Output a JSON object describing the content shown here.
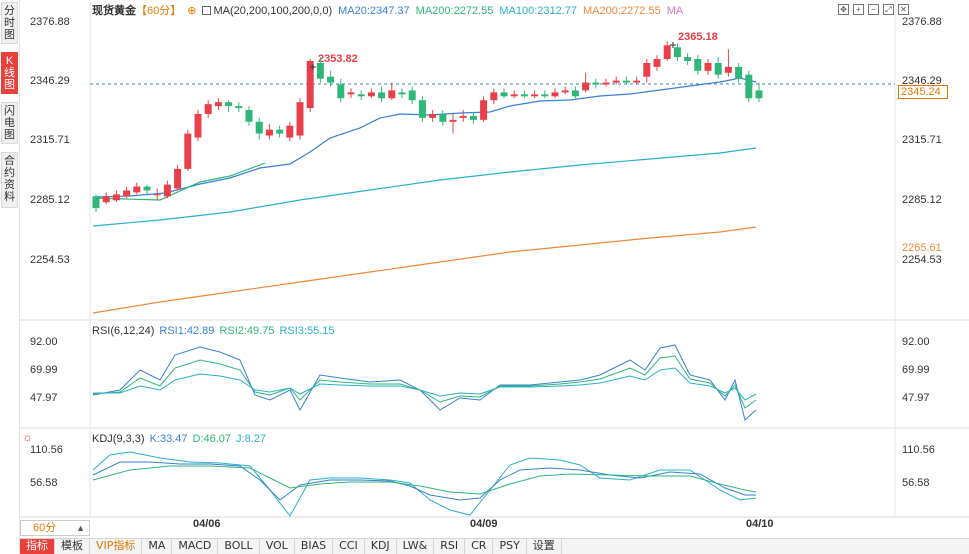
{
  "left_tabs": [
    {
      "label": "分\n时\n图",
      "active": false
    },
    {
      "label": "K\n线\n图",
      "active": true
    },
    {
      "label": "闪\n电\n图",
      "active": false
    },
    {
      "label": "合\n约\n资\n料",
      "active": false
    }
  ],
  "header": {
    "title": "现货黄金",
    "period_tag": "【60分】",
    "ma_label": "MA(20,200,100,200,0,0)",
    "ma20": "MA20:2347.37",
    "ma200a": "MA200:2272.55",
    "ma100": "MA100:2312.77",
    "ma200b": "MA200:2272.55",
    "ma_tail": "MA"
  },
  "price_axis": {
    "left": [
      "2376.88",
      "2346.29",
      "2315.71",
      "2285.12",
      "2254.53"
    ],
    "right": [
      "2376.88",
      "2346.29",
      "2315.71",
      "2285.12",
      "2254.53"
    ],
    "current_price": "2345.24",
    "ma_price": "2265.61",
    "high_label": "2353.82",
    "high_label2": "2365.18",
    "scale_min": 2240,
    "scale_max": 2385
  },
  "rsi": {
    "label": "RSI(6,12,24)",
    "rsi1": "RSI1:42.89",
    "rsi2": "RSI2:49.75",
    "rsi3": "RSI3:55.15",
    "axis": [
      "92.00",
      "69.99",
      "47.97"
    ]
  },
  "kdj": {
    "label": "KDJ(9,3,3)",
    "k": "K:33.47",
    "d": "D:46.07",
    "j": "J:8.27",
    "axis": [
      "110.56",
      "56.58"
    ]
  },
  "period": "60分",
  "dates": [
    "04/06",
    "04/09",
    "04/10"
  ],
  "bottom_tabs": [
    "指标",
    "模板",
    "VIP指标",
    "MA",
    "MACD",
    "BOLL",
    "VOL",
    "BIAS",
    "CCI",
    "KDJ",
    "LW&",
    "RSI",
    "CR",
    "PSY",
    "设置"
  ],
  "colors": {
    "up": "#e8404a",
    "down": "#2fb77a",
    "ma20": "#3a7fd5",
    "ma200": "#2fb77a",
    "ma100": "#2ab0c8",
    "ma200b": "#f0883a",
    "accent": "#e07a00"
  },
  "chart_data": {
    "type": "candlestick",
    "candles": [
      [
        2288,
        2282,
        2289,
        2280
      ],
      [
        2285,
        2288,
        2290,
        2284
      ],
      [
        2286,
        2289,
        2291,
        2285
      ],
      [
        2288,
        2291,
        2293,
        2287
      ],
      [
        2290,
        2293,
        2295,
        2289
      ],
      [
        2293,
        2291,
        2294,
        2289
      ],
      [
        2289,
        2289,
        2292,
        2286
      ],
      [
        2288,
        2294,
        2296,
        2287
      ],
      [
        2292,
        2302,
        2304,
        2291
      ],
      [
        2302,
        2320,
        2322,
        2301
      ],
      [
        2318,
        2330,
        2332,
        2316
      ],
      [
        2330,
        2335,
        2337,
        2328
      ],
      [
        2334,
        2336,
        2338,
        2332
      ],
      [
        2336,
        2334,
        2337,
        2331
      ],
      [
        2334,
        2333,
        2336,
        2331
      ],
      [
        2332,
        2326,
        2334,
        2324
      ],
      [
        2326,
        2320,
        2328,
        2317
      ],
      [
        2319,
        2322,
        2325,
        2317
      ],
      [
        2322,
        2320,
        2324,
        2318
      ],
      [
        2318,
        2324,
        2326,
        2316
      ],
      [
        2319,
        2336,
        2338,
        2317
      ],
      [
        2333,
        2357,
        2358,
        2331
      ],
      [
        2356,
        2348,
        2359,
        2346
      ],
      [
        2349,
        2346,
        2352,
        2344
      ],
      [
        2345,
        2338,
        2348,
        2336
      ],
      [
        2340,
        2341,
        2343,
        2338
      ],
      [
        2340,
        2339,
        2342,
        2337
      ],
      [
        2339,
        2341,
        2343,
        2338
      ],
      [
        2341,
        2338,
        2344,
        2336
      ],
      [
        2338,
        2342,
        2346,
        2337
      ],
      [
        2341,
        2340,
        2343,
        2338
      ],
      [
        2342,
        2337,
        2344,
        2335
      ],
      [
        2337,
        2328,
        2339,
        2326
      ],
      [
        2328,
        2330,
        2332,
        2326
      ],
      [
        2330,
        2326,
        2332,
        2324
      ],
      [
        2326,
        2327,
        2330,
        2320
      ],
      [
        2328,
        2329,
        2332,
        2326
      ],
      [
        2329,
        2327,
        2331,
        2325
      ],
      [
        2327,
        2337,
        2339,
        2326
      ],
      [
        2337,
        2341,
        2343,
        2335
      ],
      [
        2341,
        2339,
        2343,
        2338
      ],
      [
        2339,
        2340,
        2342,
        2338
      ],
      [
        2340,
        2339,
        2342,
        2338
      ],
      [
        2339,
        2340,
        2342,
        2338
      ],
      [
        2340,
        2339,
        2342,
        2338
      ],
      [
        2339,
        2341,
        2343,
        2338
      ],
      [
        2341,
        2342,
        2344,
        2340
      ],
      [
        2342,
        2339,
        2344,
        2338
      ],
      [
        2342,
        2346,
        2351,
        2341
      ],
      [
        2346,
        2345,
        2348,
        2343
      ],
      [
        2345,
        2346,
        2348,
        2344
      ],
      [
        2346,
        2347,
        2349,
        2345
      ],
      [
        2347,
        2346,
        2349,
        2345
      ],
      [
        2346,
        2347,
        2349,
        2345
      ],
      [
        2349,
        2356,
        2358,
        2346
      ],
      [
        2354,
        2358,
        2360,
        2352
      ],
      [
        2358,
        2365,
        2367,
        2357
      ],
      [
        2364,
        2359,
        2366,
        2357
      ],
      [
        2359,
        2357,
        2361,
        2355
      ],
      [
        2358,
        2352,
        2360,
        2350
      ],
      [
        2352,
        2356,
        2358,
        2350
      ],
      [
        2356,
        2350,
        2359,
        2348
      ],
      [
        2351,
        2354,
        2363,
        2349
      ],
      [
        2354,
        2348,
        2356,
        2346
      ],
      [
        2350,
        2338,
        2352,
        2336
      ],
      [
        2342,
        2338,
        2346,
        2336
      ]
    ]
  }
}
